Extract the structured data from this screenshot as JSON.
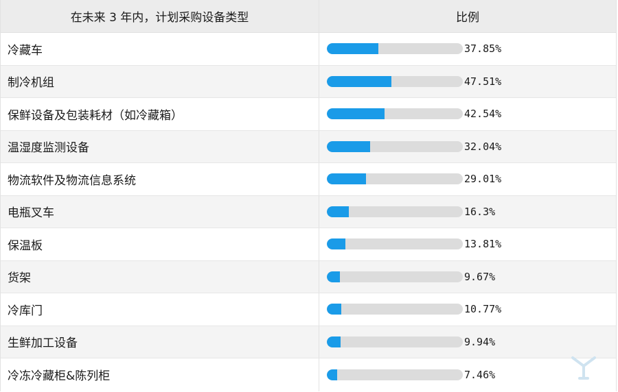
{
  "header": {
    "category_col": "在未来 3 年内，计划采购设备类型",
    "ratio_col": "比例"
  },
  "chart_data": {
    "type": "bar",
    "categories": [
      "冷藏车",
      "制冷机组",
      "保鲜设备及包装耗材（如冷藏箱）",
      "温湿度监测设备",
      "物流软件及物流信息系统",
      "电瓶叉车",
      "保温板",
      "货架",
      "冷库门",
      "生鲜加工设备",
      "冷冻冷藏柜&陈列柜"
    ],
    "values": [
      37.85,
      47.51,
      42.54,
      32.04,
      29.01,
      16.3,
      13.81,
      9.67,
      10.77,
      9.94,
      7.46
    ],
    "labels": [
      "37.85%",
      "47.51%",
      "42.54%",
      "32.04%",
      "29.01%",
      "16.3%",
      "13.81%",
      "9.67%",
      "10.77%",
      "9.94%",
      "7.46%"
    ],
    "xlim": [
      0,
      100
    ],
    "bar_color": "#1a9be8",
    "track_color": "#dcdcdc"
  }
}
